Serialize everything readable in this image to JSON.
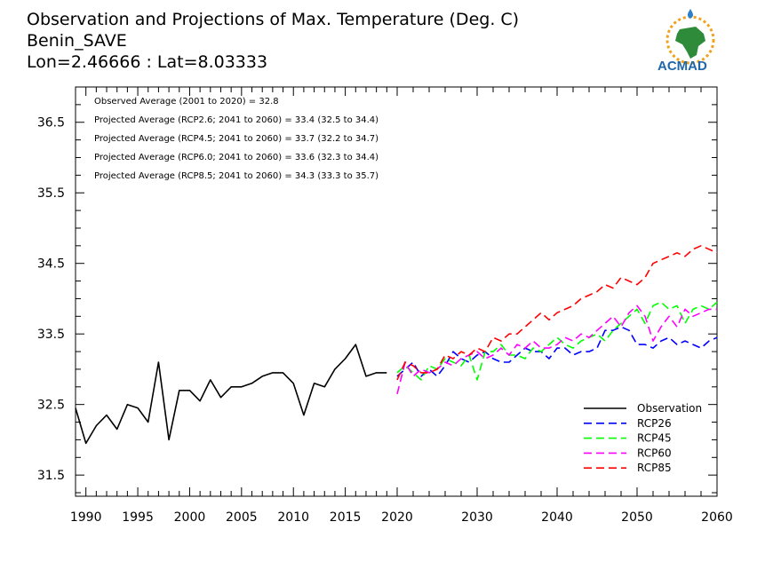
{
  "chart_data": {
    "type": "line",
    "title_lines": [
      "Observation and Projections of Max. Temperature (Deg. C)",
      "Benin_SAVE",
      "Lon=2.46666 : Lat=8.03333"
    ],
    "stats": [
      "Observed Average (2001 to 2020) = 32.8",
      "Projected Average (RCP2.6; 2041 to 2060) = 33.4 (32.5 to 34.4)",
      "Projected Average (RCP4.5; 2041 to 2060) = 33.7 (32.2 to 34.7)",
      "Projected Average (RCP6.0; 2041 to 2060) = 33.6 (32.3 to 34.4)",
      "Projected Average (RCP8.5; 2041 to 2060) = 34.3 (33.3 to 35.7)"
    ],
    "logo_text": "ACMAD",
    "xlabel": "",
    "ylabel": "",
    "x_ticks_left": [
      1990,
      1995,
      2000,
      2005,
      2010,
      2015,
      2020
    ],
    "x_ticks_right": [
      2020,
      2030,
      2040,
      2050,
      2060
    ],
    "y_ticks": [
      31.5,
      32.5,
      33.5,
      34.5,
      35.5,
      36.5
    ],
    "ylim": [
      31.2,
      37.0
    ],
    "grid": false,
    "legend_position": "bottom-right",
    "series": [
      {
        "name": "Observation",
        "color": "#000000",
        "dash": "solid",
        "x": [
          1989,
          1990,
          1991,
          1992,
          1993,
          1994,
          1995,
          1996,
          1997,
          1998,
          1999,
          2000,
          2001,
          2002,
          2003,
          2004,
          2005,
          2006,
          2007,
          2008,
          2009,
          2010,
          2011,
          2012,
          2013,
          2014,
          2015,
          2016,
          2017,
          2018,
          2019
        ],
        "values": [
          32.45,
          31.95,
          32.2,
          32.35,
          32.15,
          32.5,
          32.45,
          32.25,
          33.1,
          32.0,
          32.7,
          32.7,
          32.55,
          32.85,
          32.6,
          32.75,
          32.75,
          32.8,
          32.9,
          32.95,
          32.95,
          32.8,
          32.35,
          32.8,
          32.75,
          33.0,
          33.15,
          33.35,
          32.9,
          32.95,
          32.95
        ]
      },
      {
        "name": "RCP26",
        "color": "#0000ff",
        "dash": "dashed",
        "x": [
          2020,
          2021,
          2022,
          2023,
          2024,
          2025,
          2026,
          2027,
          2028,
          2029,
          2030,
          2031,
          2032,
          2033,
          2034,
          2035,
          2036,
          2037,
          2038,
          2039,
          2040,
          2041,
          2042,
          2043,
          2044,
          2045,
          2046,
          2047,
          2048,
          2049,
          2050,
          2051,
          2052,
          2053,
          2054,
          2055,
          2056,
          2057,
          2058,
          2059,
          2060
        ],
        "values": [
          32.9,
          33.0,
          33.1,
          32.9,
          33.0,
          32.9,
          33.05,
          33.25,
          33.15,
          33.1,
          33.2,
          33.25,
          33.15,
          33.1,
          33.1,
          33.2,
          33.3,
          33.25,
          33.25,
          33.15,
          33.3,
          33.3,
          33.2,
          33.25,
          33.25,
          33.3,
          33.55,
          33.55,
          33.6,
          33.55,
          33.35,
          33.35,
          33.3,
          33.4,
          33.45,
          33.35,
          33.4,
          33.35,
          33.3,
          33.4,
          33.45
        ]
      },
      {
        "name": "RCP45",
        "color": "#00ff00",
        "dash": "dashed",
        "x": [
          2020,
          2021,
          2022,
          2023,
          2024,
          2025,
          2026,
          2027,
          2028,
          2029,
          2030,
          2031,
          2032,
          2033,
          2034,
          2035,
          2036,
          2037,
          2038,
          2039,
          2040,
          2041,
          2042,
          2043,
          2044,
          2045,
          2046,
          2047,
          2048,
          2049,
          2050,
          2051,
          2052,
          2053,
          2054,
          2055,
          2056,
          2057,
          2058,
          2059,
          2060
        ],
        "values": [
          32.95,
          33.05,
          32.95,
          32.85,
          33.05,
          33.0,
          33.15,
          33.1,
          33.05,
          33.2,
          32.85,
          33.25,
          33.25,
          33.35,
          33.2,
          33.2,
          33.15,
          33.3,
          33.25,
          33.35,
          33.45,
          33.35,
          33.3,
          33.4,
          33.45,
          33.5,
          33.4,
          33.55,
          33.65,
          33.75,
          33.85,
          33.65,
          33.9,
          33.95,
          33.85,
          33.9,
          33.65,
          33.85,
          33.9,
          33.85,
          33.95
        ]
      },
      {
        "name": "RCP60",
        "color": "#ff00ff",
        "dash": "dashed",
        "x": [
          2020,
          2021,
          2022,
          2023,
          2024,
          2025,
          2026,
          2027,
          2028,
          2029,
          2030,
          2031,
          2032,
          2033,
          2034,
          2035,
          2036,
          2037,
          2038,
          2039,
          2040,
          2041,
          2042,
          2043,
          2044,
          2045,
          2046,
          2047,
          2048,
          2049,
          2050,
          2051,
          2052,
          2053,
          2054,
          2055,
          2056,
          2057,
          2058,
          2059,
          2060
        ],
        "values": [
          32.65,
          33.1,
          32.9,
          33.0,
          32.95,
          33.0,
          33.1,
          33.05,
          33.15,
          33.2,
          33.25,
          33.15,
          33.2,
          33.3,
          33.2,
          33.35,
          33.3,
          33.4,
          33.3,
          33.3,
          33.35,
          33.45,
          33.4,
          33.5,
          33.45,
          33.55,
          33.65,
          33.75,
          33.6,
          33.8,
          33.9,
          33.75,
          33.4,
          33.6,
          33.75,
          33.6,
          33.85,
          33.75,
          33.8,
          33.85,
          33.85
        ]
      },
      {
        "name": "RCP85",
        "color": "#ff0000",
        "dash": "dashed",
        "x": [
          2020,
          2021,
          2022,
          2023,
          2024,
          2025,
          2026,
          2027,
          2028,
          2029,
          2030,
          2031,
          2032,
          2033,
          2034,
          2035,
          2036,
          2037,
          2038,
          2039,
          2040,
          2041,
          2042,
          2043,
          2044,
          2045,
          2046,
          2047,
          2048,
          2049,
          2050,
          2051,
          2052,
          2053,
          2054,
          2055,
          2056,
          2057,
          2058,
          2059,
          2060
        ],
        "values": [
          32.85,
          33.1,
          33.05,
          32.95,
          32.95,
          33.0,
          33.2,
          33.15,
          33.25,
          33.2,
          33.3,
          33.25,
          33.45,
          33.4,
          33.5,
          33.5,
          33.6,
          33.7,
          33.8,
          33.7,
          33.8,
          33.85,
          33.9,
          34.0,
          34.05,
          34.1,
          34.2,
          34.15,
          34.3,
          34.25,
          34.2,
          34.3,
          34.5,
          34.55,
          34.6,
          34.65,
          34.6,
          34.7,
          34.75,
          34.7,
          34.65
        ]
      }
    ]
  }
}
